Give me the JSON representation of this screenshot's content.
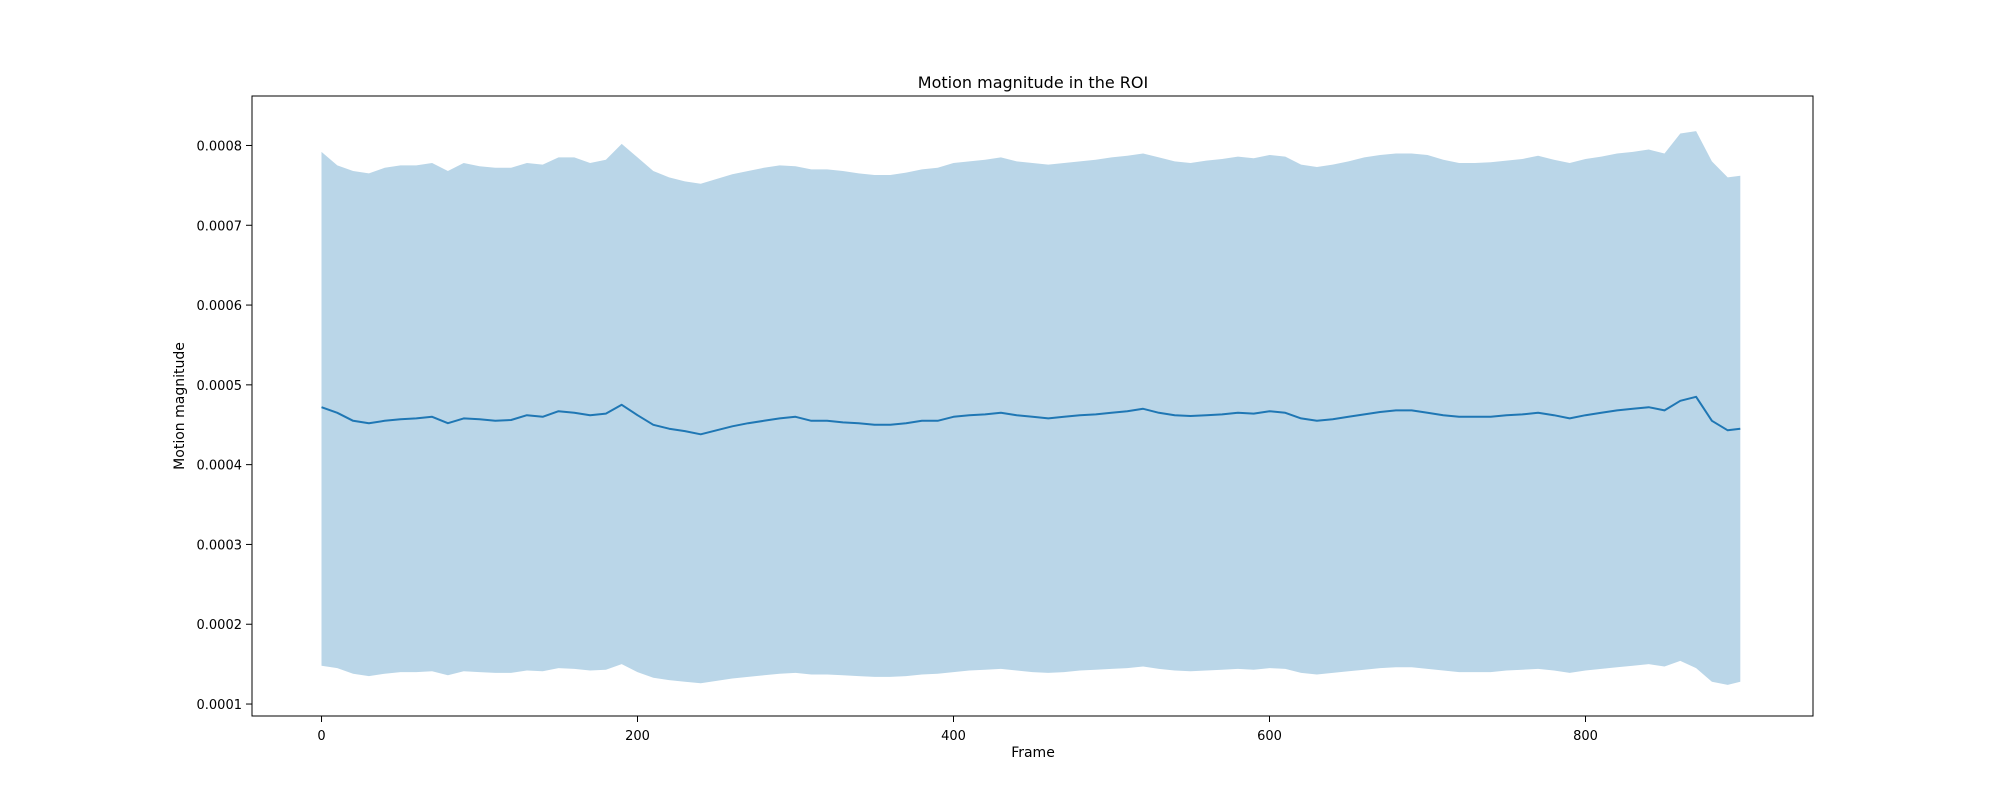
{
  "chart_data": {
    "type": "area",
    "title": "Motion magnitude in the ROI",
    "xlabel": "Frame",
    "ylabel": "Motion magnitude",
    "xlim": [
      -44,
      944
    ],
    "ylim": [
      8.5e-05,
      0.000862
    ],
    "xticks": [
      0,
      200,
      400,
      600,
      800
    ],
    "yticks": [
      0.0001,
      0.0002,
      0.0003,
      0.0004,
      0.0005,
      0.0006,
      0.0007,
      0.0008
    ],
    "ytick_labels": [
      "0.0001",
      "0.0002",
      "0.0003",
      "0.0004",
      "0.0005",
      "0.0006",
      "0.0007",
      "0.0008"
    ],
    "grid": false,
    "colors": {
      "line": "#1f77b4",
      "band": "#bad6e8"
    },
    "x": [
      0,
      10,
      20,
      30,
      40,
      50,
      60,
      70,
      80,
      90,
      100,
      110,
      120,
      130,
      140,
      150,
      160,
      170,
      180,
      190,
      200,
      210,
      220,
      230,
      240,
      250,
      260,
      270,
      280,
      290,
      300,
      310,
      320,
      330,
      340,
      350,
      360,
      370,
      380,
      390,
      400,
      410,
      420,
      430,
      440,
      450,
      460,
      470,
      480,
      490,
      500,
      510,
      520,
      530,
      540,
      550,
      560,
      570,
      580,
      590,
      600,
      610,
      620,
      630,
      640,
      650,
      660,
      670,
      680,
      690,
      700,
      710,
      720,
      730,
      740,
      750,
      760,
      770,
      780,
      790,
      800,
      810,
      820,
      830,
      840,
      850,
      860,
      870,
      880,
      890,
      898
    ],
    "series": [
      {
        "type": "line",
        "values": [
          0.000472,
          0.000465,
          0.000455,
          0.000452,
          0.000455,
          0.000457,
          0.000458,
          0.00046,
          0.000452,
          0.000458,
          0.000457,
          0.000455,
          0.000456,
          0.000462,
          0.00046,
          0.000467,
          0.000465,
          0.000462,
          0.000464,
          0.000475,
          0.000462,
          0.00045,
          0.000445,
          0.000442,
          0.000438,
          0.000443,
          0.000448,
          0.000452,
          0.000455,
          0.000458,
          0.00046,
          0.000455,
          0.000455,
          0.000453,
          0.000452,
          0.00045,
          0.00045,
          0.000452,
          0.000455,
          0.000455,
          0.00046,
          0.000462,
          0.000463,
          0.000465,
          0.000462,
          0.00046,
          0.000458,
          0.00046,
          0.000462,
          0.000463,
          0.000465,
          0.000467,
          0.00047,
          0.000465,
          0.000462,
          0.000461,
          0.000462,
          0.000463,
          0.000465,
          0.000464,
          0.000467,
          0.000465,
          0.000458,
          0.000455,
          0.000457,
          0.00046,
          0.000463,
          0.000466,
          0.000468,
          0.000468,
          0.000465,
          0.000462,
          0.00046,
          0.00046,
          0.00046,
          0.000462,
          0.000463,
          0.000465,
          0.000462,
          0.000458,
          0.000462,
          0.000465,
          0.000468,
          0.00047,
          0.000472,
          0.000468,
          0.00048,
          0.000485,
          0.000455,
          0.000443,
          0.000445
        ]
      },
      {
        "type": "band-upper",
        "values": [
          0.000792,
          0.000775,
          0.000768,
          0.000765,
          0.000772,
          0.000775,
          0.000775,
          0.000778,
          0.000768,
          0.000778,
          0.000774,
          0.000772,
          0.000772,
          0.000778,
          0.000776,
          0.000785,
          0.000785,
          0.000778,
          0.000782,
          0.000802,
          0.000785,
          0.000768,
          0.00076,
          0.000755,
          0.000752,
          0.000758,
          0.000764,
          0.000768,
          0.000772,
          0.000775,
          0.000774,
          0.00077,
          0.00077,
          0.000768,
          0.000765,
          0.000763,
          0.000763,
          0.000766,
          0.00077,
          0.000772,
          0.000778,
          0.00078,
          0.000782,
          0.000785,
          0.00078,
          0.000778,
          0.000776,
          0.000778,
          0.00078,
          0.000782,
          0.000785,
          0.000787,
          0.00079,
          0.000785,
          0.00078,
          0.000778,
          0.000781,
          0.000783,
          0.000786,
          0.000784,
          0.000788,
          0.000786,
          0.000776,
          0.000773,
          0.000776,
          0.00078,
          0.000785,
          0.000788,
          0.00079,
          0.00079,
          0.000788,
          0.000782,
          0.000778,
          0.000778,
          0.000779,
          0.000781,
          0.000783,
          0.000787,
          0.000782,
          0.000778,
          0.000783,
          0.000786,
          0.00079,
          0.000792,
          0.000795,
          0.00079,
          0.000815,
          0.000818,
          0.00078,
          0.00076,
          0.000762
        ]
      },
      {
        "type": "band-lower",
        "values": [
          0.000148,
          0.000145,
          0.000138,
          0.000135,
          0.000138,
          0.00014,
          0.00014,
          0.000141,
          0.000136,
          0.000141,
          0.00014,
          0.000139,
          0.000139,
          0.000142,
          0.000141,
          0.000145,
          0.000144,
          0.000142,
          0.000143,
          0.00015,
          0.00014,
          0.000133,
          0.00013,
          0.000128,
          0.000126,
          0.000129,
          0.000132,
          0.000134,
          0.000136,
          0.000138,
          0.000139,
          0.000137,
          0.000137,
          0.000136,
          0.000135,
          0.000134,
          0.000134,
          0.000135,
          0.000137,
          0.000138,
          0.00014,
          0.000142,
          0.000143,
          0.000144,
          0.000142,
          0.00014,
          0.000139,
          0.00014,
          0.000142,
          0.000143,
          0.000144,
          0.000145,
          0.000147,
          0.000144,
          0.000142,
          0.000141,
          0.000142,
          0.000143,
          0.000144,
          0.000143,
          0.000145,
          0.000144,
          0.000139,
          0.000137,
          0.000139,
          0.000141,
          0.000143,
          0.000145,
          0.000146,
          0.000146,
          0.000144,
          0.000142,
          0.00014,
          0.00014,
          0.00014,
          0.000142,
          0.000143,
          0.000144,
          0.000142,
          0.000139,
          0.000142,
          0.000144,
          0.000146,
          0.000148,
          0.00015,
          0.000147,
          0.000154,
          0.000145,
          0.000128,
          0.000124,
          0.000128
        ]
      }
    ]
  }
}
